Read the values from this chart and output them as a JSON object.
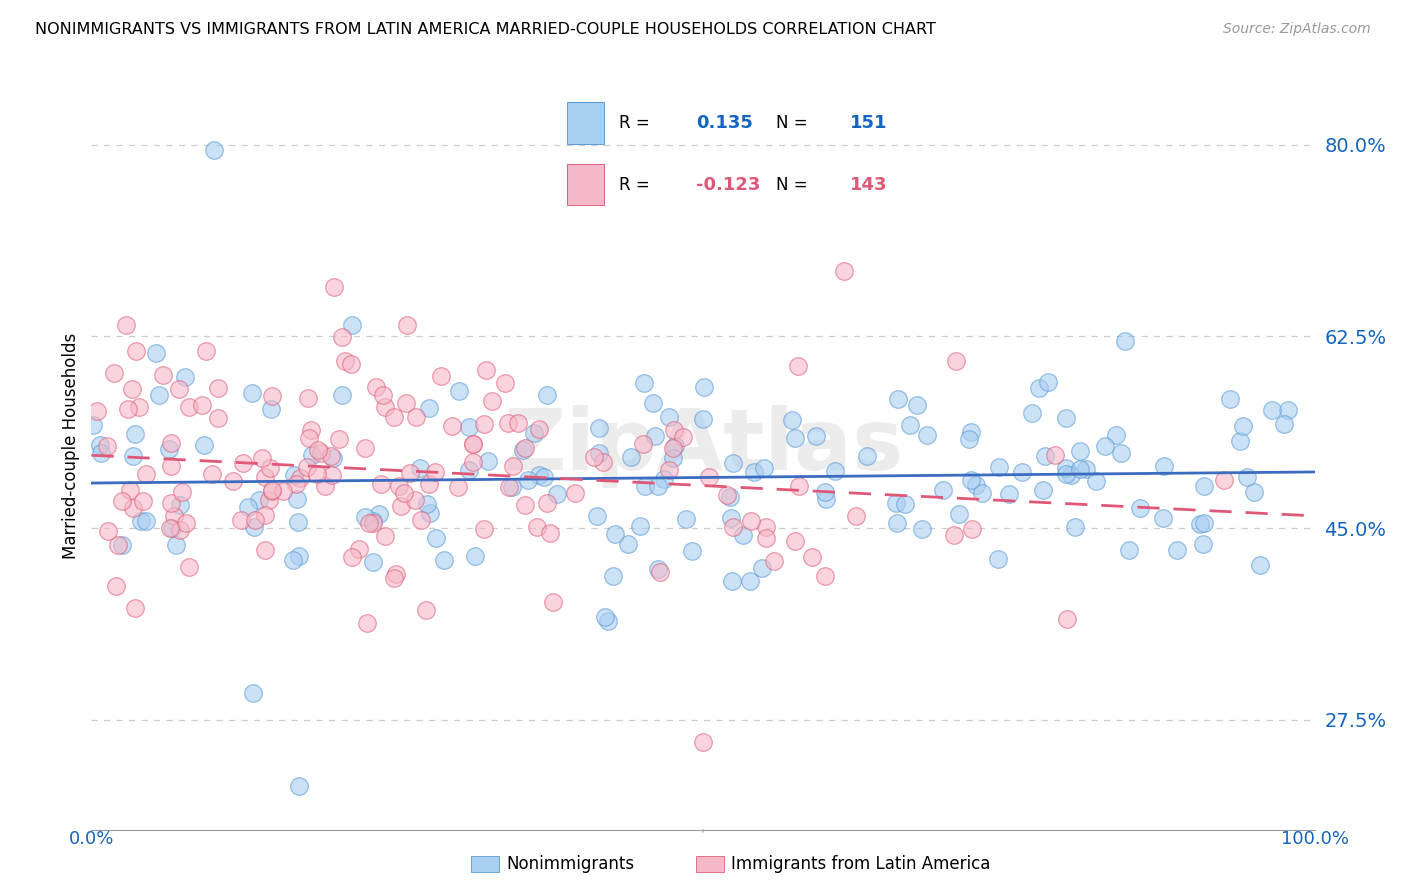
{
  "title": "NONIMMIGRANTS VS IMMIGRANTS FROM LATIN AMERICA MARRIED-COUPLE HOUSEHOLDS CORRELATION CHART",
  "source": "Source: ZipAtlas.com",
  "ylabel": "Married-couple Households",
  "ytick_labels": [
    "27.5%",
    "45.0%",
    "62.5%",
    "80.0%"
  ],
  "ytick_values": [
    0.275,
    0.45,
    0.625,
    0.8
  ],
  "xlim": [
    0.0,
    1.0
  ],
  "ylim": [
    0.175,
    0.875
  ],
  "legend_label1": "Nonimmigrants",
  "legend_label2": "Immigrants from Latin America",
  "R1": 0.135,
  "N1": 151,
  "R2": -0.123,
  "N2": 143,
  "color_blue": "#A8CEF0",
  "color_blue_edge": "#5B9BD5",
  "color_pink": "#F5B8C8",
  "color_pink_edge": "#E0607A",
  "color_blue_line": "#3B6CC0",
  "color_pink_line": "#E05878",
  "color_blue_text": "#1565C0",
  "color_pink_text": "#E05878",
  "watermark": "ZipAtlas",
  "background_color": "#FFFFFF",
  "grid_color": "#CCCCCC"
}
